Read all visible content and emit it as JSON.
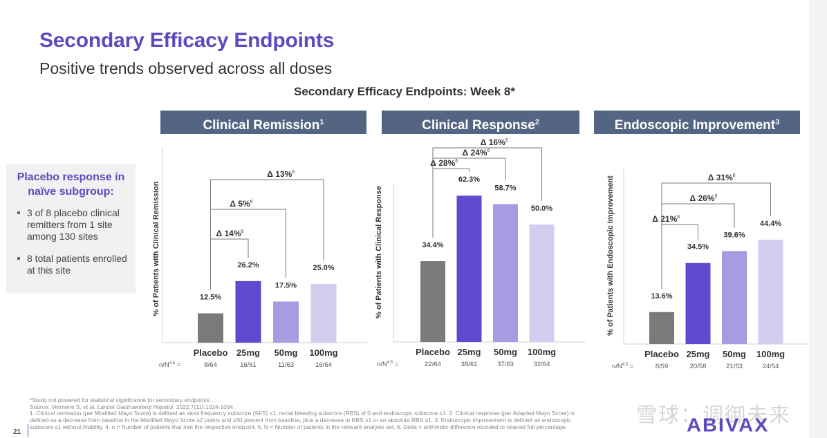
{
  "slide": {
    "title": "Secondary Efficacy Endpoints",
    "subtitle": "Positive trends observed across all doses",
    "section_title": "Secondary Efficacy Endpoints: Week 8*",
    "page_number": "21",
    "logo": "ABIVAX",
    "watermark": "雪球：调御未来"
  },
  "colors": {
    "title": "#5b4bbf",
    "header_bg": "#536583",
    "placebo": "#7a7a7a",
    "dose_25": "#5f49cf",
    "dose_50": "#a79be2",
    "dose_100": "#d3cdf0"
  },
  "callout": {
    "title_line1": "Placebo response in",
    "title_line2": "naïve subgroup:",
    "bullets": [
      "3 of 8 placebo clinical remitters from 1 site among 130 sites",
      "8 total patients enrolled at this site"
    ]
  },
  "chart_data": [
    {
      "type": "bar",
      "title": "Clinical Remission",
      "title_sup": "1",
      "ylabel": "% of Patients with Clinical Remission",
      "categories": [
        "Placebo",
        "25mg",
        "50mg",
        "100mg"
      ],
      "values": [
        12.5,
        26.2,
        17.5,
        25.0
      ],
      "value_labels": [
        "12.5%",
        "26.2%",
        "17.5%",
        "25.0%"
      ],
      "n_label": "n/N",
      "n_label_sup": "4,5",
      "n_values": [
        "8/64",
        "16/61",
        "11/63",
        "16/64"
      ],
      "ylim": [
        0,
        65
      ],
      "deltas": [
        {
          "label": "Δ 14%",
          "sup": "6",
          "to": "25mg"
        },
        {
          "label": "Δ 5%",
          "sup": "6",
          "to": "50mg"
        },
        {
          "label": "Δ 13%",
          "sup": "6",
          "to": "100mg"
        }
      ],
      "grid": false,
      "legend": "none"
    },
    {
      "type": "bar",
      "title": "Clinical Response",
      "title_sup": "2",
      "ylabel": "% of Patients with Clinical Response",
      "categories": [
        "Placebo",
        "25mg",
        "50mg",
        "100mg"
      ],
      "values": [
        34.4,
        62.3,
        58.7,
        50.0
      ],
      "value_labels": [
        "34.4%",
        "62.3%",
        "58.7%",
        "50.0%"
      ],
      "n_label": "n/N",
      "n_label_sup": "4,5",
      "n_values": [
        "22/64",
        "38/61",
        "37/63",
        "32/64"
      ],
      "ylim": [
        0,
        65
      ],
      "deltas": [
        {
          "label": "Δ 28%",
          "sup": "6",
          "to": "25mg"
        },
        {
          "label": "Δ 24%",
          "sup": "6",
          "to": "50mg"
        },
        {
          "label": "Δ 16%",
          "sup": "6",
          "to": "100mg"
        }
      ],
      "grid": false,
      "legend": "none"
    },
    {
      "type": "bar",
      "title": "Endoscopic Improvement",
      "title_sup": "3",
      "ylabel": "% of Patients with Endoscopic Improvement",
      "categories": [
        "Placebo",
        "25mg",
        "50mg",
        "100mg"
      ],
      "values": [
        13.6,
        34.5,
        39.6,
        44.4
      ],
      "value_labels": [
        "13.6%",
        "34.5%",
        "39.6%",
        "44.4%"
      ],
      "n_label": "n/N",
      "n_label_sup": "4,5",
      "n_values": [
        "8/59",
        "20/58",
        "21/53",
        "24/54"
      ],
      "ylim": [
        0,
        65
      ],
      "deltas": [
        {
          "label": "Δ 21%",
          "sup": "6",
          "to": "25mg"
        },
        {
          "label": "Δ 26%",
          "sup": "6",
          "to": "50mg"
        },
        {
          "label": "Δ 31%",
          "sup": "6",
          "to": "100mg"
        }
      ],
      "grid": false,
      "legend": "none"
    }
  ],
  "footer": {
    "line1": "*Study not powered for statistical significance for secondary endpoints.",
    "line2_prefix": "Source: Vermeire S, et al. ",
    "line2_journal": "Lancet Gastroenterol Hepatol.",
    "line2_suffix": " 2022;7(11):1024-1034.",
    "line3": "1. Clinical remission (per Modified Mayo Score) is defined as stool frequency subscore (SFS) ≤1, rectal bleeding subscore (RBS) of 0 and endoscopic subscore ≤1. 2. Clinical response (per Adapted Mayo Score) is",
    "line4": "defined as a decrease from baseline in the Modified Mayo Score ≥2 points and ≥30 percent from baseline, plus a decrease in RBS ≥1 or an absolute RBS ≤1. 3. Endoscopic improvement is defined as endoscopic",
    "line5": "subscore ≤1 without friability. 4. n = Number of patients that met the respective endpoint. 5. N = Number of patients in the relevant analysis set. 6. Delta = arithmetic difference rounded to nearest full percentage."
  }
}
